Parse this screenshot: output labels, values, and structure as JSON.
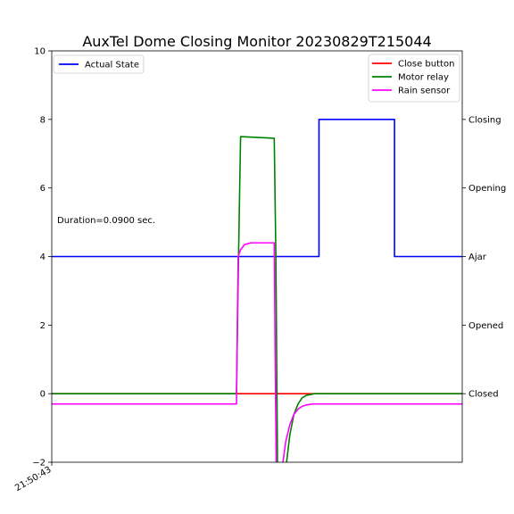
{
  "chart_data": {
    "type": "line",
    "title": "AuxTel Dome Closing Monitor 20230829T215044",
    "annotation": "Duration=0.0900 sec.",
    "xlabel": "",
    "ylabel": "",
    "x_tick_labels": [
      "21:50:43"
    ],
    "xlim": [
      0,
      100
    ],
    "ylim": [
      -2,
      10
    ],
    "y_ticks": [
      -2,
      0,
      2,
      4,
      6,
      8,
      10
    ],
    "y_tick_labels": [
      "−2",
      "0",
      "2",
      "4",
      "6",
      "8",
      "10"
    ],
    "right_axis_labels": [
      {
        "value": 0,
        "label": "Closed"
      },
      {
        "value": 2,
        "label": "Opened"
      },
      {
        "value": 4,
        "label": "Ajar"
      },
      {
        "value": 6,
        "label": "Opening"
      },
      {
        "value": 8,
        "label": "Closing"
      }
    ],
    "legend_left": {
      "placement": "upper-left",
      "entries": [
        "Actual State"
      ]
    },
    "legend_right": {
      "placement": "upper-right",
      "entries": [
        "Close button",
        "Motor relay",
        "Rain sensor"
      ]
    },
    "series": [
      {
        "name": "Actual State",
        "color": "#0000ff",
        "x": [
          0,
          65.1,
          65.1,
          83.5,
          83.5,
          100
        ],
        "y": [
          4,
          4,
          8,
          8,
          4,
          4
        ]
      },
      {
        "name": "Close button",
        "color": "#ff0000",
        "x": [
          0,
          45,
          54.5,
          100
        ],
        "y": [
          0,
          0,
          0,
          0
        ]
      },
      {
        "name": "Motor relay",
        "color": "#008000",
        "x": [
          0,
          45,
          45.5,
          46,
          54.2,
          54.6,
          55,
          57,
          58,
          59,
          60,
          61,
          62,
          64,
          68,
          100
        ],
        "y": [
          0,
          0,
          4,
          7.5,
          7.45,
          4,
          -2.2,
          -2.2,
          -1.2,
          -0.6,
          -0.3,
          -0.12,
          -0.05,
          0,
          0,
          0
        ]
      },
      {
        "name": "Rain sensor",
        "color": "#ff00ff",
        "x": [
          0,
          45,
          45.4,
          46,
          47,
          48.5,
          54.2,
          54.5,
          54.7,
          56.1,
          57,
          58,
          59,
          60,
          61,
          62,
          63,
          64,
          66,
          100
        ],
        "y": [
          -0.3,
          -0.3,
          4,
          4.2,
          4.35,
          4.4,
          4.4,
          0,
          -2.2,
          -2.2,
          -1.4,
          -0.9,
          -0.6,
          -0.45,
          -0.37,
          -0.33,
          -0.31,
          -0.3,
          -0.3,
          -0.3
        ]
      }
    ],
    "grid": false
  }
}
